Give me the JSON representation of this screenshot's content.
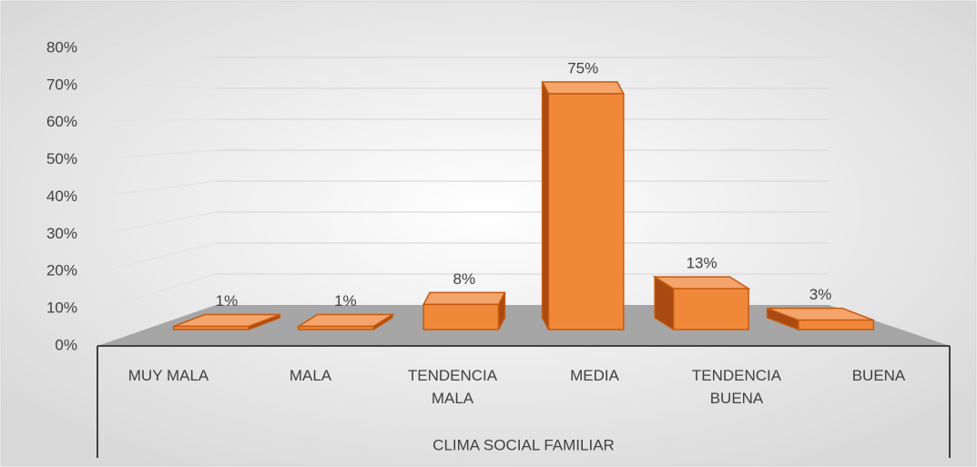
{
  "chart_data": {
    "type": "bar3d",
    "axis_title": "CLIMA SOCIAL FAMILIAR",
    "categories": [
      "MUY MALA",
      "MALA",
      "TENDENCIA MALA",
      "MEDIA",
      "TENDENCIA BUENA",
      "BUENA"
    ],
    "values": [
      1,
      1,
      8,
      75,
      13,
      3
    ],
    "value_labels": [
      "1%",
      "1%",
      "8%",
      "75%",
      "13%",
      "3%"
    ],
    "color": "#f0883a",
    "ylim": [
      0,
      80
    ],
    "yticks": [
      {
        "value": 0,
        "label": "0%"
      },
      {
        "value": 10,
        "label": "10%"
      },
      {
        "value": 20,
        "label": "20%"
      },
      {
        "value": 30,
        "label": "30%"
      },
      {
        "value": 40,
        "label": "40%"
      },
      {
        "value": 50,
        "label": "50%"
      },
      {
        "value": 60,
        "label": "60%"
      },
      {
        "value": 70,
        "label": "70%"
      },
      {
        "value": 80,
        "label": "80%"
      }
    ],
    "grid": true
  }
}
